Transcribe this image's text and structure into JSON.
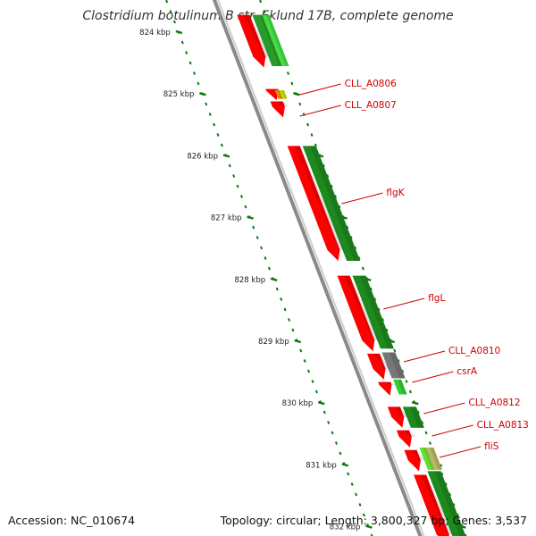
{
  "title": "Clostridium botulinum B str. Eklund 17B, complete genome",
  "accession": "Accession: NC_010674",
  "summary": "Topology: circular; Length: 3,800,327 bp; Genes: 3,537",
  "colors": {
    "backbone": "#888888",
    "forward": "#ff0000",
    "reverse": "#1e8a1e",
    "ticks": "#0a7a0a",
    "label": "#cc0000"
  },
  "scale": {
    "unit": "kbp",
    "tick_labels": [
      "824 kbp",
      "825 kbp",
      "826 kbp",
      "827 kbp",
      "828 kbp",
      "829 kbp",
      "830 kbp",
      "831 kbp",
      "832 kbp"
    ],
    "tick_values": [
      824,
      825,
      826,
      827,
      828,
      829,
      830,
      831,
      832
    ]
  },
  "genes": [
    {
      "name": "",
      "strand": "reverse-red",
      "start": 823.72,
      "end": 824.57
    },
    {
      "name": "",
      "strand": "forward-green",
      "start": 823.72,
      "end": 824.55,
      "color": "#2a9a2a"
    },
    {
      "name": "",
      "strand": "forward-lightgreen",
      "start": 823.72,
      "end": 824.55,
      "color": "#44dd44"
    },
    {
      "name": "",
      "strand": "reverse-red",
      "start": 824.92,
      "end": 825.1
    },
    {
      "name": "CLL_A0806",
      "strand": "forward-small",
      "start": 824.94,
      "end": 825.08,
      "color": "#f08a00"
    },
    {
      "name": "CLL_A0807",
      "strand": "forward-small",
      "start": 824.94,
      "end": 825.08,
      "color": "#b8e000"
    },
    {
      "name": "",
      "strand": "reverse-red",
      "start": 825.12,
      "end": 825.38
    },
    {
      "name": "flgK",
      "strand": "forward-green",
      "start": 825.84,
      "end": 827.7,
      "color": "#1e8a1e"
    },
    {
      "name": "",
      "strand": "reverse-red",
      "start": 825.84,
      "end": 827.7
    },
    {
      "name": "flgL",
      "strand": "forward-green",
      "start": 827.94,
      "end": 829.12,
      "color": "#1e8a1e"
    },
    {
      "name": "",
      "strand": "reverse-red",
      "start": 827.94,
      "end": 829.16
    },
    {
      "name": "CLL_A0810",
      "strand": "forward-gray",
      "start": 829.18,
      "end": 829.6,
      "color": "#777777"
    },
    {
      "name": "",
      "strand": "reverse-red",
      "start": 829.2,
      "end": 829.62
    },
    {
      "name": "csrA",
      "strand": "forward-small",
      "start": 829.62,
      "end": 829.86,
      "color": "#33cc33"
    },
    {
      "name": "",
      "strand": "reverse-red",
      "start": 829.66,
      "end": 829.88
    },
    {
      "name": "CLL_A0812",
      "strand": "forward-green",
      "start": 830.06,
      "end": 830.4,
      "color": "#1e8a1e"
    },
    {
      "name": "",
      "strand": "reverse-red",
      "start": 830.06,
      "end": 830.4
    },
    {
      "name": "CLL_A0813",
      "strand": "reverse-red-only",
      "start": 830.44,
      "end": 830.72
    },
    {
      "name": "fliS",
      "strand": "forward-small",
      "start": 830.72,
      "end": 831.08,
      "color": "#66dd33"
    },
    {
      "name": "",
      "strand": "forward-small",
      "start": 830.72,
      "end": 831.08,
      "color": "#b8b860"
    },
    {
      "name": "",
      "strand": "reverse-red",
      "start": 830.76,
      "end": 831.1
    },
    {
      "name": "",
      "strand": "forward-green",
      "start": 831.1,
      "end": 832.3,
      "color": "#1e8a1e"
    },
    {
      "name": "",
      "strand": "reverse-red",
      "start": 831.16,
      "end": 832.3
    }
  ]
}
